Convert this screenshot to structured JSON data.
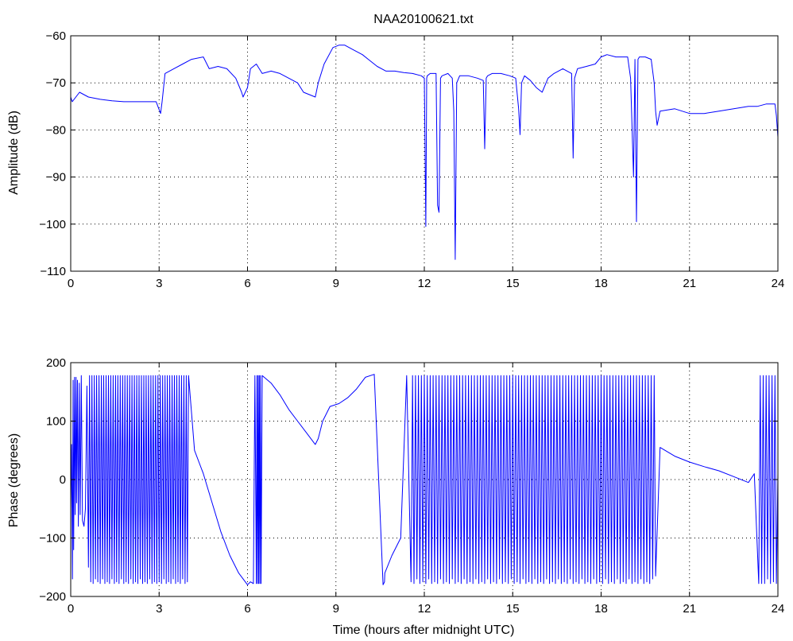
{
  "figure_title": "NAA20100621.txt",
  "colors": {
    "series": "#0000ff",
    "axes": "#000000",
    "background": "#ffffff"
  },
  "chart_data": [
    {
      "id": "amplitude",
      "type": "line",
      "title": "NAA20100621.txt",
      "xlabel": "",
      "ylabel": "Amplitude (dB)",
      "xlim": [
        0,
        24
      ],
      "ylim": [
        -110,
        -60
      ],
      "xticks": [
        "0",
        "3",
        "6",
        "9",
        "12",
        "15",
        "18",
        "21",
        "24"
      ],
      "yticks": [
        "−110",
        "−100",
        "−90",
        "−80",
        "−70",
        "−60"
      ],
      "xtick_values": [
        0,
        3,
        6,
        9,
        12,
        15,
        18,
        21,
        24
      ],
      "ytick_values": [
        -110,
        -100,
        -90,
        -80,
        -70,
        -60
      ],
      "grid": true,
      "series": [
        {
          "x": [
            0,
            0.05,
            0.3,
            0.6,
            1.0,
            1.4,
            1.8,
            2.2,
            2.6,
            2.9,
            3.05,
            3.1,
            3.2,
            3.5,
            3.8,
            4.1,
            4.5,
            4.7,
            5.0,
            5.3,
            5.6,
            5.8,
            5.85,
            6.0,
            6.1,
            6.3,
            6.5,
            6.8,
            7.1,
            7.4,
            7.7,
            7.9,
            8.1,
            8.3,
            8.4,
            8.6,
            8.9,
            9.1,
            9.3,
            9.6,
            9.9,
            10.1,
            10.4,
            10.7,
            11.0,
            11.3,
            11.6,
            11.9,
            12.0,
            12.05,
            12.08,
            12.1,
            12.2,
            12.4,
            12.45,
            12.5,
            12.55,
            12.6,
            12.8,
            12.95,
            13.0,
            13.05,
            13.1,
            13.2,
            13.5,
            13.8,
            14.0,
            14.05,
            14.1,
            14.15,
            14.3,
            14.6,
            14.9,
            15.1,
            15.2,
            15.25,
            15.3,
            15.4,
            15.6,
            15.8,
            16.0,
            16.2,
            16.4,
            16.7,
            17.0,
            17.05,
            17.1,
            17.2,
            17.5,
            17.8,
            18.0,
            18.2,
            18.5,
            18.9,
            19.0,
            19.1,
            19.15,
            19.2,
            19.25,
            19.3,
            19.5,
            19.7,
            19.8,
            19.85,
            19.9,
            20.0,
            20.5,
            21.0,
            21.5,
            22.0,
            22.5,
            23.0,
            23.3,
            23.6,
            23.9,
            23.95,
            24.0
          ],
          "y": [
            -73,
            -74,
            -72,
            -73,
            -73.5,
            -73.8,
            -74,
            -74,
            -74,
            -74,
            -76.5,
            -74,
            -68,
            -67,
            -66,
            -65,
            -64.5,
            -67,
            -66.5,
            -67,
            -69,
            -72,
            -73,
            -71,
            -67,
            -66,
            -68,
            -67.5,
            -68,
            -69,
            -70,
            -72,
            -72.5,
            -73,
            -70,
            -66,
            -62.5,
            -62,
            -62,
            -63,
            -64,
            -65,
            -66.5,
            -67.5,
            -67.5,
            -67.8,
            -68,
            -68.5,
            -69,
            -100.5,
            -69,
            -68.5,
            -68,
            -68,
            -96,
            -97.5,
            -69,
            -68.5,
            -68,
            -69,
            -76,
            -107.5,
            -70,
            -68.5,
            -68.5,
            -69,
            -69.5,
            -84,
            -69,
            -68.5,
            -68,
            -68,
            -68.5,
            -69,
            -75.5,
            -81,
            -70,
            -68.5,
            -69.5,
            -71,
            -72,
            -69,
            -68,
            -67,
            -68,
            -86,
            -69,
            -67,
            -66.5,
            -66,
            -64.5,
            -64,
            -64.5,
            -64.5,
            -69,
            -90,
            -65,
            -99.5,
            -65,
            -64.5,
            -64.5,
            -65,
            -70,
            -76,
            -79,
            -76,
            -75.5,
            -76.5,
            -76.5,
            -76,
            -75.5,
            -75,
            -75,
            -74.5,
            -74.5,
            -77,
            -81.5
          ]
        }
      ]
    },
    {
      "id": "phase",
      "type": "line",
      "title": "",
      "xlabel": "Time (hours after midnight UTC)",
      "ylabel": "Phase (degrees)",
      "xlim": [
        0,
        24
      ],
      "ylim": [
        -200,
        200
      ],
      "xticks": [
        "0",
        "3",
        "6",
        "9",
        "12",
        "15",
        "18",
        "21",
        "24"
      ],
      "yticks": [
        "−200",
        "−100",
        "0",
        "100",
        "200"
      ],
      "xtick_values": [
        0,
        3,
        6,
        9,
        12,
        15,
        18,
        21,
        24
      ],
      "ytick_values": [
        -200,
        -100,
        0,
        100,
        200
      ],
      "grid": true,
      "series": [
        {
          "x": [
            0,
            0.03,
            0.06,
            0.08,
            0.1,
            0.13,
            0.15,
            0.18,
            0.2,
            0.23,
            0.26,
            0.29,
            0.32,
            0.36,
            0.4,
            0.45,
            0.5,
            0.55,
            0.6,
            0.64,
            0.68,
            0.72,
            0.76,
            0.8,
            0.84,
            0.88,
            0.92,
            0.96,
            1.0,
            1.04,
            1.08,
            1.12,
            1.16,
            1.2,
            1.24,
            1.28,
            1.32,
            1.36,
            1.4,
            1.44,
            1.48,
            1.52,
            1.56,
            1.6,
            1.64,
            1.68,
            1.72,
            1.76,
            1.8,
            1.84,
            1.88,
            1.92,
            1.96,
            2.0,
            2.04,
            2.08,
            2.12,
            2.16,
            2.2,
            2.24,
            2.28,
            2.32,
            2.36,
            2.4,
            2.44,
            2.48,
            2.52,
            2.56,
            2.6,
            2.64,
            2.68,
            2.72,
            2.76,
            2.8,
            2.84,
            2.88,
            2.92,
            2.96,
            3.0,
            3.04,
            3.08,
            3.12,
            3.16,
            3.2,
            3.24,
            3.28,
            3.32,
            3.36,
            3.4,
            3.44,
            3.48,
            3.52,
            3.56,
            3.6,
            3.64,
            3.68,
            3.72,
            3.76,
            3.8,
            3.84,
            3.88,
            3.92,
            3.96,
            4.0,
            4.2,
            4.5,
            4.8,
            5.1,
            5.4,
            5.7,
            6.0,
            6.1,
            6.2,
            6.25,
            6.3,
            6.32,
            6.34,
            6.36,
            6.38,
            6.4,
            6.42,
            6.44,
            6.46,
            6.5,
            6.8,
            7.1,
            7.4,
            7.7,
            8.0,
            8.3,
            8.4,
            8.55,
            8.8,
            9.1,
            9.4,
            9.7,
            10.0,
            10.3,
            10.6,
            10.65,
            10.66,
            10.9,
            11.2,
            11.4,
            11.55,
            11.6,
            11.65,
            11.7,
            11.75,
            11.8,
            11.85,
            11.9,
            11.95,
            12.0,
            12.05,
            12.1,
            12.15,
            12.2,
            12.25,
            12.3,
            12.35,
            12.4,
            12.45,
            12.5,
            12.55,
            12.6,
            12.65,
            12.7,
            12.75,
            12.8,
            12.85,
            12.9,
            12.95,
            13.0,
            13.05,
            13.1,
            13.15,
            13.2,
            13.25,
            13.3,
            13.35,
            13.4,
            13.45,
            13.5,
            13.55,
            13.6,
            13.65,
            13.7,
            13.75,
            13.8,
            13.85,
            13.9,
            13.95,
            14.0,
            14.05,
            14.1,
            14.15,
            14.2,
            14.25,
            14.3,
            14.35,
            14.4,
            14.45,
            14.5,
            14.55,
            14.6,
            14.65,
            14.7,
            14.75,
            14.8,
            14.85,
            14.9,
            14.95,
            15.0,
            15.05,
            15.1,
            15.15,
            15.2,
            15.25,
            15.3,
            15.35,
            15.4,
            15.45,
            15.5,
            15.55,
            15.6,
            15.65,
            15.7,
            15.75,
            15.8,
            15.85,
            15.9,
            15.95,
            16.0,
            16.05,
            16.1,
            16.15,
            16.2,
            16.25,
            16.3,
            16.35,
            16.4,
            16.45,
            16.5,
            16.55,
            16.6,
            16.65,
            16.7,
            16.75,
            16.8,
            16.85,
            16.9,
            16.95,
            17.0,
            17.05,
            17.1,
            17.15,
            17.2,
            17.25,
            17.3,
            17.35,
            17.4,
            17.45,
            17.5,
            17.55,
            17.6,
            17.65,
            17.7,
            17.75,
            17.8,
            17.85,
            17.9,
            17.95,
            18.0,
            18.05,
            18.1,
            18.15,
            18.2,
            18.25,
            18.3,
            18.35,
            18.4,
            18.45,
            18.5,
            18.55,
            18.6,
            18.65,
            18.7,
            18.75,
            18.8,
            18.85,
            18.9,
            18.95,
            19.0,
            19.05,
            19.1,
            19.15,
            19.2,
            19.25,
            19.3,
            19.35,
            19.4,
            19.45,
            19.5,
            19.55,
            19.6,
            19.65,
            19.7,
            19.75,
            19.8,
            19.85,
            20.0,
            20.5,
            21.0,
            21.5,
            22.0,
            22.5,
            23.0,
            23.2,
            23.35,
            23.4,
            23.45,
            23.5,
            23.55,
            23.6,
            23.65,
            23.7,
            23.75,
            23.8,
            23.85,
            23.9,
            23.95,
            24.0
          ],
          "y": [
            -50,
            60,
            -170,
            170,
            -120,
            175,
            -60,
            175,
            -40,
            170,
            -80,
            165,
            -60,
            178,
            -70,
            -80,
            -50,
            160,
            -150,
            178,
            -175,
            178,
            -178,
            178,
            -170,
            178,
            -175,
            178,
            -178,
            178,
            -170,
            178,
            -178,
            178,
            -175,
            178,
            -178,
            178,
            -170,
            178,
            -178,
            178,
            -175,
            178,
            -178,
            178,
            -170,
            178,
            -178,
            178,
            -175,
            178,
            -178,
            178,
            -170,
            178,
            -178,
            178,
            -175,
            178,
            -178,
            178,
            -170,
            178,
            -178,
            178,
            -175,
            178,
            -178,
            178,
            -170,
            178,
            -178,
            178,
            -175,
            178,
            -178,
            178,
            -175,
            178,
            -178,
            178,
            -170,
            178,
            -178,
            178,
            -175,
            178,
            -178,
            178,
            -170,
            178,
            -178,
            178,
            -175,
            178,
            -178,
            178,
            -170,
            178,
            -178,
            178,
            -175,
            178,
            50,
            10,
            -40,
            -90,
            -130,
            -160,
            -180,
            -175,
            -178,
            178,
            -178,
            178,
            -178,
            178,
            -178,
            178,
            -178,
            178,
            -178,
            178,
            165,
            145,
            120,
            100,
            80,
            60,
            70,
            100,
            125,
            130,
            140,
            155,
            175,
            180,
            -180,
            -175,
            -160,
            -130,
            -100,
            178,
            -175,
            178,
            -178,
            178,
            -170,
            178,
            -178,
            178,
            -175,
            178,
            -178,
            178,
            -170,
            178,
            -178,
            178,
            -175,
            178,
            -178,
            178,
            -170,
            178,
            -178,
            178,
            -175,
            178,
            -178,
            178,
            -170,
            178,
            -178,
            178,
            -175,
            178,
            -178,
            178,
            -170,
            178,
            -178,
            178,
            -175,
            178,
            -178,
            178,
            -170,
            178,
            -178,
            178,
            -175,
            178,
            -178,
            178,
            -170,
            178,
            -178,
            178,
            -175,
            178,
            -178,
            178,
            -170,
            178,
            -178,
            178,
            -175,
            178,
            -178,
            178,
            -170,
            178,
            -178,
            178,
            -175,
            178,
            -178,
            178,
            -170,
            178,
            -178,
            178,
            -175,
            178,
            -178,
            178,
            -170,
            178,
            -178,
            178,
            -175,
            178,
            -178,
            178,
            -170,
            178,
            -178,
            178,
            -175,
            178,
            -178,
            178,
            -170,
            178,
            -178,
            178,
            -175,
            178,
            -178,
            178,
            -170,
            178,
            -178,
            178,
            -175,
            178,
            -178,
            178,
            -170,
            178,
            -178,
            178,
            -175,
            178,
            -178,
            178,
            -170,
            178,
            -178,
            178,
            -175,
            178,
            -178,
            178,
            -170,
            178,
            -178,
            178,
            -175,
            178,
            -178,
            178,
            -170,
            178,
            -178,
            178,
            -175,
            178,
            -178,
            178,
            -170,
            178,
            -178,
            178,
            -175,
            178,
            -178,
            178,
            -170,
            178,
            -178,
            178,
            -175,
            178,
            -178,
            178,
            -170,
            178,
            -165,
            55,
            40,
            30,
            22,
            15,
            5,
            -5,
            10,
            -178,
            178,
            -178,
            178,
            -178,
            178,
            -170,
            178,
            -178,
            178,
            -175,
            178,
            -178,
            10
          ]
        }
      ]
    }
  ]
}
